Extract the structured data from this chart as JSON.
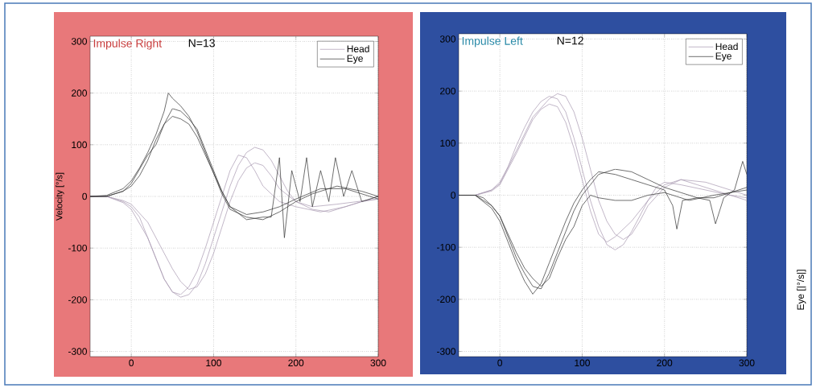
{
  "chart_data": [
    {
      "type": "line",
      "title": "Impulse Right",
      "subtitle": "N=13",
      "ylabel": "Velocity [°/s]",
      "xlim": [
        -50,
        300
      ],
      "ylim": [
        -310,
        310
      ],
      "xticks": [
        0,
        100,
        200,
        300
      ],
      "yticks": [
        -300,
        -200,
        -100,
        0,
        100,
        200,
        300
      ],
      "grid": true,
      "legend": "top right",
      "line_style": "solid",
      "marker": "none",
      "series": [
        {
          "name": "Head",
          "color": "#a898b0",
          "x": [
            -50,
            -30,
            -10,
            0,
            10,
            20,
            30,
            40,
            50,
            60,
            70,
            80,
            90,
            100,
            110,
            120,
            130,
            140,
            150,
            160,
            170,
            180,
            190,
            200,
            220,
            240,
            260,
            280,
            300
          ],
          "values": [
            0,
            0,
            -10,
            -20,
            -40,
            -80,
            -120,
            -160,
            -185,
            -195,
            -190,
            -170,
            -130,
            -80,
            -30,
            20,
            60,
            85,
            95,
            90,
            70,
            40,
            10,
            -10,
            -25,
            -30,
            -20,
            -10,
            -5
          ]
        },
        {
          "color": "#a898b0",
          "x": [
            -50,
            -30,
            -10,
            0,
            20,
            40,
            50,
            60,
            70,
            80,
            90,
            100,
            110,
            120,
            130,
            140,
            150,
            160,
            170,
            180,
            200,
            220,
            250,
            300
          ],
          "values": [
            0,
            0,
            -8,
            -15,
            -50,
            -110,
            -140,
            -165,
            -180,
            -175,
            -150,
            -110,
            -60,
            -10,
            30,
            55,
            65,
            60,
            40,
            15,
            -10,
            -20,
            -15,
            -5
          ]
        },
        {
          "color": "#a898b0",
          "x": [
            -50,
            -30,
            -10,
            0,
            20,
            30,
            40,
            50,
            60,
            70,
            80,
            90,
            100,
            110,
            120,
            130,
            140,
            150,
            160,
            180,
            200,
            230,
            260,
            300
          ],
          "values": [
            0,
            0,
            -12,
            -25,
            -80,
            -120,
            -160,
            -185,
            -190,
            -175,
            -145,
            -100,
            -50,
            0,
            50,
            80,
            75,
            50,
            20,
            -10,
            -20,
            -30,
            -20,
            0
          ]
        },
        {
          "name": "Eye",
          "color": "#303030",
          "x": [
            -50,
            -30,
            -10,
            0,
            10,
            20,
            30,
            40,
            45,
            50,
            60,
            70,
            80,
            90,
            100,
            110,
            120,
            140,
            160,
            180,
            200,
            220,
            250,
            280,
            300
          ],
          "values": [
            0,
            2,
            15,
            30,
            55,
            85,
            120,
            165,
            200,
            190,
            175,
            155,
            125,
            85,
            45,
            5,
            -25,
            -40,
            -45,
            -30,
            -10,
            5,
            20,
            10,
            0
          ]
        },
        {
          "color": "#303030",
          "x": [
            -50,
            -30,
            -10,
            0,
            10,
            20,
            30,
            40,
            50,
            60,
            70,
            80,
            90,
            100,
            110,
            120,
            140,
            160,
            180,
            200,
            230,
            260,
            300
          ],
          "values": [
            0,
            0,
            10,
            20,
            40,
            70,
            110,
            140,
            155,
            150,
            140,
            115,
            80,
            45,
            10,
            -20,
            -35,
            -30,
            -20,
            -5,
            15,
            15,
            -5
          ]
        },
        {
          "color": "#303030",
          "x": [
            -50,
            -30,
            -10,
            0,
            20,
            30,
            40,
            50,
            60,
            70,
            80,
            90,
            100,
            110,
            120,
            140,
            160,
            170,
            180,
            186,
            195,
            205,
            213,
            220,
            230,
            240,
            248,
            258,
            268,
            280,
            300
          ],
          "values": [
            0,
            0,
            10,
            25,
            80,
            100,
            140,
            170,
            165,
            150,
            130,
            90,
            50,
            10,
            -20,
            -45,
            -40,
            -40,
            75,
            -80,
            50,
            -10,
            75,
            -20,
            50,
            -10,
            75,
            0,
            50,
            -10,
            0
          ]
        }
      ]
    },
    {
      "type": "line",
      "title": "Impulse Left",
      "subtitle": "N=12",
      "annotations": [
        "Eye [|°/s|]"
      ],
      "xlim": [
        -50,
        300
      ],
      "ylim": [
        -310,
        310
      ],
      "xticks": [
        0,
        100,
        200,
        300
      ],
      "yticks": [
        -300,
        -200,
        -100,
        0,
        100,
        200,
        300
      ],
      "grid": true,
      "legend": "top right",
      "line_style": "solid",
      "marker": "none",
      "series": [
        {
          "name": "Head",
          "color": "#a898b0",
          "x": [
            -50,
            -30,
            -20,
            -10,
            0,
            10,
            20,
            30,
            40,
            50,
            60,
            70,
            80,
            90,
            100,
            110,
            120,
            130,
            140,
            150,
            160,
            170,
            180,
            190,
            200,
            220,
            250,
            280,
            300
          ],
          "values": [
            0,
            0,
            5,
            10,
            25,
            55,
            95,
            130,
            160,
            180,
            190,
            185,
            160,
            110,
            50,
            -10,
            -60,
            -95,
            -105,
            -95,
            -70,
            -40,
            -10,
            15,
            25,
            20,
            10,
            0,
            -5
          ]
        },
        {
          "color": "#a898b0",
          "x": [
            -50,
            -30,
            -10,
            0,
            20,
            40,
            50,
            60,
            70,
            80,
            90,
            100,
            110,
            120,
            130,
            140,
            160,
            180,
            200,
            220,
            240,
            270,
            300
          ],
          "values": [
            0,
            0,
            8,
            20,
            80,
            145,
            165,
            175,
            170,
            140,
            90,
            30,
            -30,
            -75,
            -90,
            -80,
            -50,
            -10,
            20,
            30,
            20,
            5,
            -10
          ]
        },
        {
          "color": "#a898b0",
          "x": [
            -50,
            -30,
            -10,
            0,
            20,
            40,
            60,
            70,
            80,
            90,
            100,
            110,
            120,
            130,
            140,
            150,
            160,
            170,
            180,
            200,
            220,
            250,
            280,
            300
          ],
          "values": [
            0,
            0,
            10,
            22,
            85,
            150,
            185,
            195,
            190,
            160,
            110,
            50,
            -10,
            -50,
            -75,
            -85,
            -75,
            -50,
            -20,
            15,
            30,
            25,
            10,
            0
          ]
        },
        {
          "name": "Eye",
          "color": "#303030",
          "x": [
            -50,
            -30,
            -20,
            -10,
            0,
            10,
            20,
            30,
            40,
            50,
            60,
            70,
            80,
            90,
            100,
            110,
            120,
            140,
            160,
            180,
            200,
            220,
            240,
            260,
            280,
            300
          ],
          "values": [
            0,
            0,
            -5,
            -20,
            -40,
            -80,
            -120,
            -150,
            -175,
            -180,
            -150,
            -110,
            -70,
            -30,
            0,
            20,
            40,
            50,
            45,
            30,
            15,
            5,
            -5,
            -5,
            5,
            15
          ]
        },
        {
          "color": "#303030",
          "x": [
            -50,
            -30,
            -10,
            0,
            10,
            20,
            30,
            40,
            50,
            60,
            70,
            80,
            90,
            100,
            110,
            120,
            140,
            160,
            180,
            200,
            210,
            215,
            222,
            240,
            255,
            262,
            272,
            285,
            295,
            300
          ],
          "values": [
            0,
            0,
            -25,
            -50,
            -90,
            -130,
            -165,
            -190,
            -170,
            -130,
            -90,
            -50,
            -15,
            10,
            30,
            45,
            40,
            30,
            20,
            10,
            -20,
            -65,
            -10,
            -5,
            -10,
            -55,
            -5,
            10,
            65,
            40
          ]
        },
        {
          "color": "#303030",
          "x": [
            -50,
            -30,
            -10,
            0,
            20,
            30,
            40,
            50,
            60,
            70,
            80,
            90,
            100,
            110,
            120,
            140,
            160,
            180,
            200,
            230,
            260,
            300
          ],
          "values": [
            0,
            0,
            -20,
            -40,
            -110,
            -140,
            -160,
            -175,
            -160,
            -120,
            -85,
            -60,
            -20,
            0,
            -5,
            -10,
            -10,
            0,
            5,
            -10,
            0,
            10
          ]
        }
      ]
    }
  ]
}
